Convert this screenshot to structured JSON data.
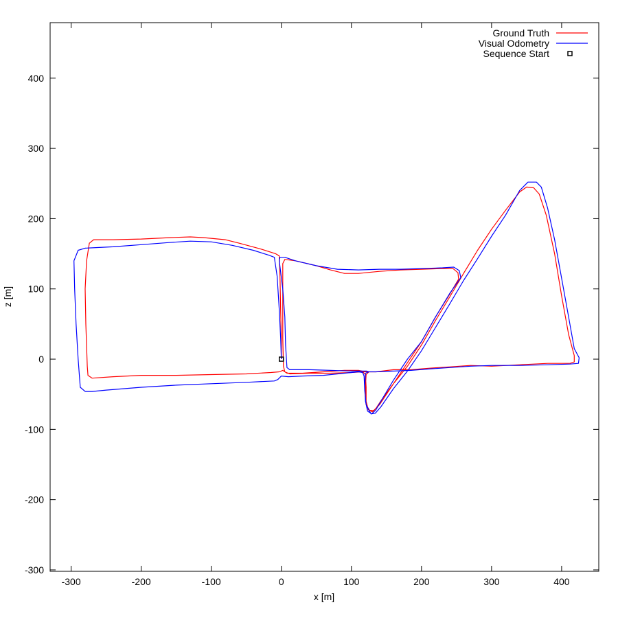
{
  "chart_data": {
    "type": "line",
    "xlabel": "x [m]",
    "ylabel": "z [m]",
    "xlim": [
      -330,
      453
    ],
    "ylim": [
      -302,
      479
    ],
    "x_ticks": [
      -300,
      -200,
      -100,
      0,
      100,
      200,
      300,
      400
    ],
    "y_ticks": [
      -300,
      -200,
      -100,
      0,
      100,
      200,
      300,
      400
    ],
    "x_tick_labels": [
      "-300",
      "-200",
      "-100",
      "0",
      "100",
      "200",
      "300",
      "400"
    ],
    "y_tick_labels": [
      "-300",
      "-200",
      "-100",
      "0",
      "100",
      "200",
      "300",
      "400"
    ],
    "grid": false,
    "legend_position": "top-right",
    "legend": [
      {
        "label": "Ground Truth",
        "kind": "line",
        "color": "#ff0000"
      },
      {
        "label": "Visual Odometry",
        "kind": "line",
        "color": "#0000ff"
      },
      {
        "label": "Sequence Start",
        "kind": "square",
        "color": "#000000"
      }
    ],
    "series": [
      {
        "name": "Ground Truth",
        "color": "#ff0000",
        "points": [
          [
            0,
            0
          ],
          [
            0,
            30
          ],
          [
            -1,
            70
          ],
          [
            -2,
            120
          ],
          [
            -3,
            147
          ],
          [
            -8,
            150
          ],
          [
            -30,
            157
          ],
          [
            -60,
            165
          ],
          [
            -80,
            170
          ],
          [
            -110,
            173
          ],
          [
            -130,
            174
          ],
          [
            -160,
            173
          ],
          [
            -200,
            171
          ],
          [
            -240,
            170
          ],
          [
            -268,
            170
          ],
          [
            -274,
            165
          ],
          [
            -278,
            140
          ],
          [
            -280,
            100
          ],
          [
            -279,
            50
          ],
          [
            -277,
            -10
          ],
          [
            -276,
            -23
          ],
          [
            -270,
            -27
          ],
          [
            -240,
            -25
          ],
          [
            -200,
            -23
          ],
          [
            -150,
            -23
          ],
          [
            -100,
            -22
          ],
          [
            -50,
            -21
          ],
          [
            -15,
            -19
          ],
          [
            -3,
            -18
          ],
          [
            2,
            -16
          ],
          [
            8,
            -20
          ],
          [
            30,
            -20
          ],
          [
            60,
            -18
          ],
          [
            90,
            -16
          ],
          [
            110,
            -16
          ],
          [
            115,
            -17
          ],
          [
            120,
            -22
          ],
          [
            121,
            -40
          ],
          [
            121,
            -65
          ],
          [
            126,
            -73
          ],
          [
            132,
            -73
          ],
          [
            140,
            -65
          ],
          [
            160,
            -35
          ],
          [
            180,
            -10
          ],
          [
            200,
            20
          ],
          [
            220,
            55
          ],
          [
            240,
            88
          ],
          [
            260,
            122
          ],
          [
            280,
            155
          ],
          [
            300,
            185
          ],
          [
            320,
            212
          ],
          [
            340,
            238
          ],
          [
            350,
            245
          ],
          [
            360,
            244
          ],
          [
            368,
            235
          ],
          [
            378,
            205
          ],
          [
            390,
            150
          ],
          [
            400,
            90
          ],
          [
            410,
            35
          ],
          [
            418,
            5
          ],
          [
            418,
            -4
          ],
          [
            412,
            -6
          ],
          [
            380,
            -6
          ],
          [
            340,
            -8
          ],
          [
            300,
            -10
          ],
          [
            270,
            -9
          ],
          [
            240,
            -11
          ],
          [
            210,
            -13
          ],
          [
            185,
            -15
          ],
          [
            160,
            -15
          ],
          [
            135,
            -18
          ],
          [
            125,
            -18
          ],
          [
            115,
            -18
          ],
          [
            100,
            -19
          ],
          [
            70,
            -20
          ],
          [
            40,
            -20
          ],
          [
            12,
            -21
          ],
          [
            5,
            -18
          ],
          [
            3,
            -10
          ],
          [
            2,
            30
          ],
          [
            2,
            100
          ],
          [
            2,
            136
          ],
          [
            5,
            142
          ],
          [
            20,
            140
          ],
          [
            50,
            133
          ],
          [
            70,
            127
          ],
          [
            90,
            122
          ],
          [
            110,
            122
          ],
          [
            140,
            125
          ],
          [
            170,
            127
          ],
          [
            200,
            128
          ],
          [
            230,
            129
          ],
          [
            245,
            129
          ],
          [
            252,
            123
          ],
          [
            253,
            114
          ],
          [
            240,
            92
          ],
          [
            220,
            60
          ],
          [
            200,
            25
          ],
          [
            180,
            -5
          ],
          [
            160,
            -35
          ],
          [
            145,
            -55
          ],
          [
            135,
            -70
          ],
          [
            130,
            -75
          ],
          [
            124,
            -72
          ],
          [
            121,
            -60
          ],
          [
            120,
            -40
          ],
          [
            121,
            -22
          ],
          [
            125,
            -18
          ]
        ]
      },
      {
        "name": "Visual Odometry",
        "color": "#0000ff",
        "points": [
          [
            0,
            0
          ],
          [
            -1,
            30
          ],
          [
            -3,
            70
          ],
          [
            -6,
            118
          ],
          [
            -10,
            145
          ],
          [
            -18,
            148
          ],
          [
            -40,
            155
          ],
          [
            -70,
            162
          ],
          [
            -100,
            167
          ],
          [
            -130,
            168
          ],
          [
            -160,
            166
          ],
          [
            -200,
            163
          ],
          [
            -240,
            160
          ],
          [
            -280,
            158
          ],
          [
            -290,
            155
          ],
          [
            -296,
            140
          ],
          [
            -295,
            100
          ],
          [
            -293,
            50
          ],
          [
            -290,
            0
          ],
          [
            -287,
            -40
          ],
          [
            -280,
            -46
          ],
          [
            -270,
            -46
          ],
          [
            -250,
            -44
          ],
          [
            -200,
            -40
          ],
          [
            -150,
            -37
          ],
          [
            -100,
            -35
          ],
          [
            -50,
            -33
          ],
          [
            -10,
            -31
          ],
          [
            -5,
            -29
          ],
          [
            0,
            -24
          ],
          [
            10,
            -25
          ],
          [
            30,
            -24
          ],
          [
            60,
            -23
          ],
          [
            90,
            -20
          ],
          [
            110,
            -18
          ],
          [
            116,
            -19
          ],
          [
            118,
            -24
          ],
          [
            119,
            -45
          ],
          [
            121,
            -65
          ],
          [
            128,
            -78
          ],
          [
            134,
            -77
          ],
          [
            142,
            -68
          ],
          [
            160,
            -42
          ],
          [
            180,
            -17
          ],
          [
            200,
            12
          ],
          [
            220,
            45
          ],
          [
            240,
            78
          ],
          [
            260,
            112
          ],
          [
            280,
            143
          ],
          [
            300,
            175
          ],
          [
            320,
            205
          ],
          [
            340,
            240
          ],
          [
            352,
            252
          ],
          [
            364,
            252
          ],
          [
            371,
            245
          ],
          [
            380,
            215
          ],
          [
            390,
            170
          ],
          [
            400,
            115
          ],
          [
            410,
            60
          ],
          [
            418,
            15
          ],
          [
            425,
            2
          ],
          [
            424,
            -6
          ],
          [
            412,
            -7
          ],
          [
            380,
            -8
          ],
          [
            340,
            -9
          ],
          [
            300,
            -9
          ],
          [
            270,
            -10
          ],
          [
            240,
            -12
          ],
          [
            210,
            -14
          ],
          [
            185,
            -16
          ],
          [
            160,
            -17
          ],
          [
            135,
            -18
          ],
          [
            125,
            -18
          ],
          [
            122,
            -17
          ],
          [
            120,
            -17
          ],
          [
            100,
            -17
          ],
          [
            70,
            -16
          ],
          [
            40,
            -15
          ],
          [
            12,
            -15
          ],
          [
            8,
            -12
          ],
          [
            6,
            20
          ],
          [
            5,
            60
          ],
          [
            2,
            100
          ],
          [
            -3,
            140
          ],
          [
            -2,
            145
          ],
          [
            5,
            145
          ],
          [
            20,
            140
          ],
          [
            50,
            133
          ],
          [
            80,
            128
          ],
          [
            110,
            127
          ],
          [
            140,
            128
          ],
          [
            170,
            128
          ],
          [
            200,
            129
          ],
          [
            230,
            130
          ],
          [
            246,
            131
          ],
          [
            254,
            126
          ],
          [
            256,
            116
          ],
          [
            240,
            93
          ],
          [
            220,
            60
          ],
          [
            200,
            25
          ],
          [
            180,
            0
          ],
          [
            160,
            -30
          ],
          [
            145,
            -55
          ],
          [
            135,
            -72
          ],
          [
            129,
            -78
          ],
          [
            123,
            -74
          ],
          [
            120,
            -60
          ],
          [
            119,
            -38
          ],
          [
            120,
            -20
          ],
          [
            125,
            -18
          ]
        ]
      }
    ],
    "start_point": [
      0,
      0
    ]
  }
}
